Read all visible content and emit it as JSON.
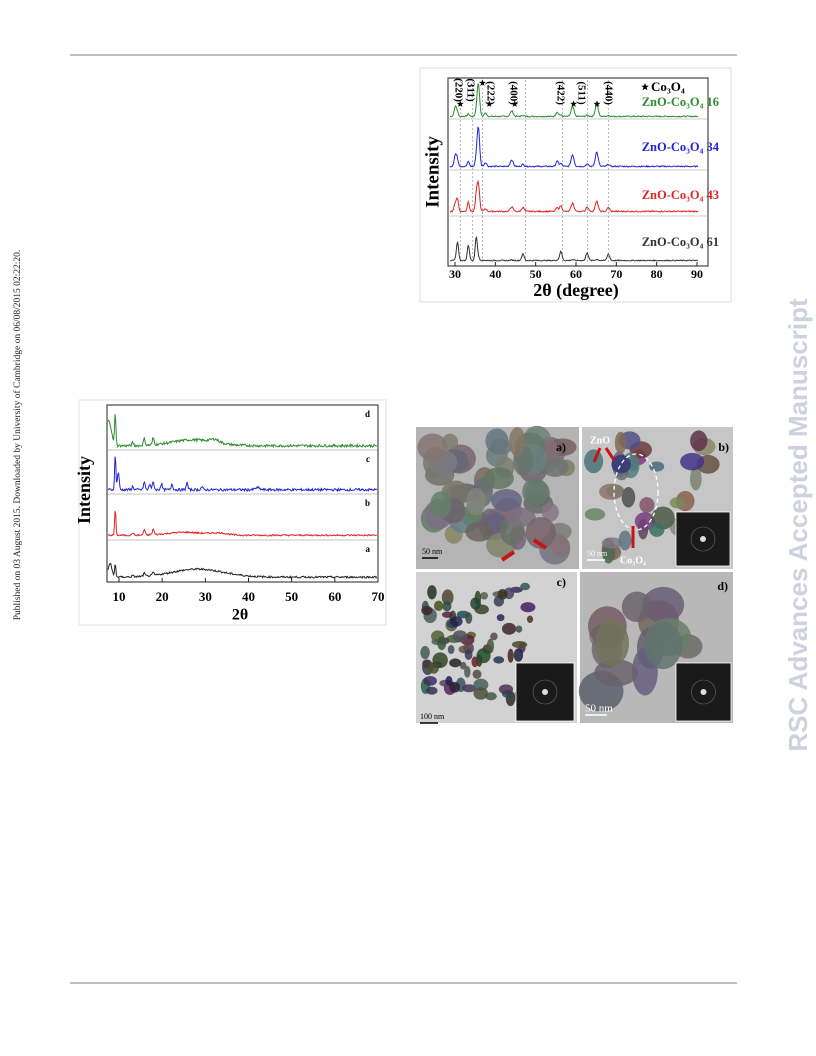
{
  "side_note": "Published on 03 August 2015. Downloaded by University of Cambridge on 06/08/2015 02:22:20.",
  "watermark": "RSC Advances Accepted Manuscript",
  "figure_xrd_composites": {
    "legend": "Co₃O₄",
    "peak_labels": [
      "(220)",
      "(311)",
      "(222)",
      "(400)",
      "(422)",
      "(511)",
      "(440)"
    ],
    "series_labels": [
      "ZnO-Co₃O₄ 16",
      "ZnO-Co₃O₄ 34",
      "ZnO-Co₃O₄ 43",
      "ZnO-Co₃O₄ 61"
    ],
    "y_label": "Intensity",
    "x_label": "2θ (degree)",
    "x_ticks": [
      "30",
      "40",
      "50",
      "60",
      "70",
      "80",
      "90"
    ]
  },
  "figure_xrd_left": {
    "panel_labels": [
      "d",
      "c",
      "b",
      "a"
    ],
    "y_label": "Intensity",
    "x_label": "2θ",
    "x_ticks": [
      "10",
      "20",
      "30",
      "40",
      "50",
      "60",
      "70"
    ]
  },
  "figure_tem": {
    "panel_labels": [
      "a)",
      "b)",
      "c)",
      "d)"
    ],
    "annotations": [
      "ZnO",
      "Co₃O₄"
    ],
    "scale_bars": [
      "50 nm",
      "50 nm",
      "100 nm",
      "50 nm"
    ]
  }
}
